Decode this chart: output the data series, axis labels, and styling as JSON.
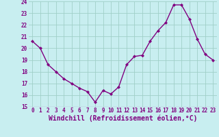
{
  "x": [
    0,
    1,
    2,
    3,
    4,
    5,
    6,
    7,
    8,
    9,
    10,
    11,
    12,
    13,
    14,
    15,
    16,
    17,
    18,
    19,
    20,
    21,
    22,
    23
  ],
  "y": [
    20.6,
    20.0,
    18.6,
    18.0,
    17.4,
    17.0,
    16.6,
    16.3,
    15.4,
    16.4,
    16.1,
    16.7,
    18.6,
    19.3,
    19.4,
    20.6,
    21.5,
    22.2,
    23.7,
    23.7,
    22.5,
    20.8,
    19.5,
    19.0
  ],
  "line_color": "#800080",
  "marker": "D",
  "marker_size": 2.0,
  "bg_color": "#c8eef0",
  "plot_bg_color": "#c8eef0",
  "grid_color": "#a0cfc8",
  "xlabel": "Windchill (Refroidissement éolien,°C)",
  "xlabel_color": "#800080",
  "ylim": [
    15,
    24
  ],
  "yticks": [
    15,
    16,
    17,
    18,
    19,
    20,
    21,
    22,
    23,
    24
  ],
  "xticks": [
    0,
    1,
    2,
    3,
    4,
    5,
    6,
    7,
    8,
    9,
    10,
    11,
    12,
    13,
    14,
    15,
    16,
    17,
    18,
    19,
    20,
    21,
    22,
    23
  ],
  "tick_color": "#800080",
  "tick_fontsize": 5.5,
  "xlabel_fontsize": 7.0,
  "linewidth": 1.0,
  "spine_color": "#800080",
  "separator_color": "#800080"
}
